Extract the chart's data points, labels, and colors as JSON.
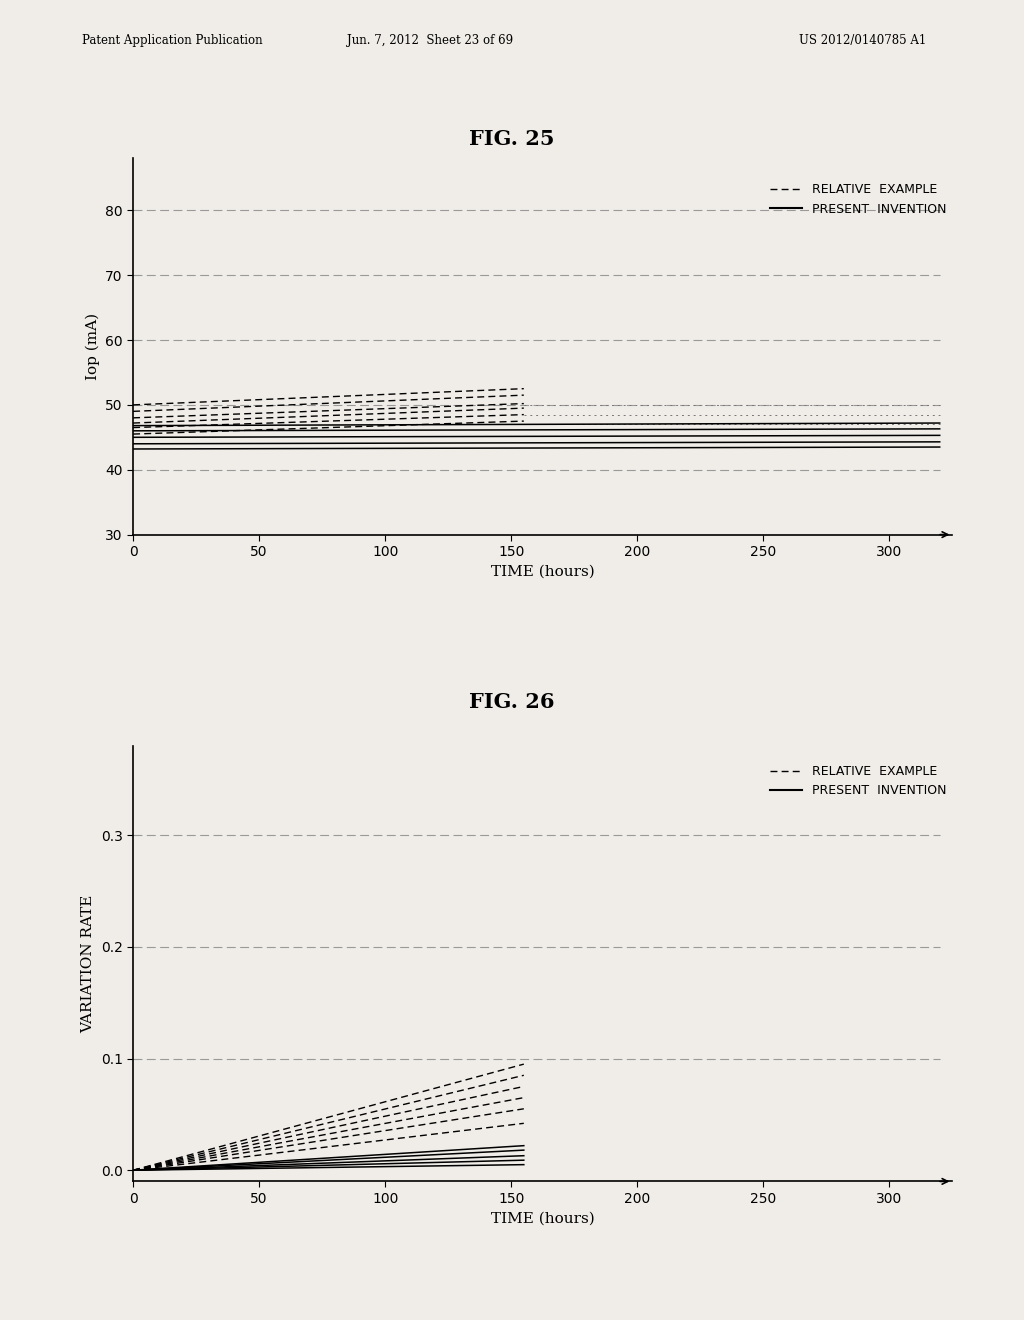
{
  "fig25_title": "FIG. 25",
  "fig26_title": "FIG. 26",
  "header_left": "Patent Application Publication",
  "header_mid": "Jun. 7, 2012  Sheet 23 of 69",
  "header_right": "US 2012/0140785 A1",
  "fig25": {
    "xlabel": "TIME (hours)",
    "ylabel": "Iop (mA)",
    "xlim": [
      0,
      325
    ],
    "ylim": [
      30,
      88
    ],
    "xticks": [
      0,
      50,
      100,
      150,
      200,
      250,
      300
    ],
    "yticks": [
      30,
      40,
      50,
      60,
      70,
      80
    ],
    "horizontal_lines": [
      40,
      50,
      60,
      70,
      80
    ],
    "relative_example_lines": [
      {
        "y0": 50.0,
        "y1": 52.5
      },
      {
        "y0": 49.0,
        "y1": 51.5
      },
      {
        "y0": 48.0,
        "y1": 50.2
      },
      {
        "y0": 47.2,
        "y1": 49.5
      },
      {
        "y0": 46.5,
        "y1": 48.5
      },
      {
        "y0": 45.5,
        "y1": 47.5
      }
    ],
    "present_invention_lines": [
      {
        "y0": 46.8,
        "y1": 47.2
      },
      {
        "y0": 46.0,
        "y1": 46.3
      },
      {
        "y0": 45.0,
        "y1": 45.3
      },
      {
        "y0": 44.0,
        "y1": 44.3
      },
      {
        "y0": 43.2,
        "y1": 43.5
      }
    ],
    "re_flat_after": [
      {
        "y": 50.0
      },
      {
        "y": 48.5
      },
      {
        "y": 47.0
      }
    ],
    "pi_flat_after": [
      {
        "y": 47.0
      },
      {
        "y": 46.0
      },
      {
        "y": 45.0
      },
      {
        "y": 44.0
      },
      {
        "y": 43.0
      }
    ],
    "x_cutoff": 155
  },
  "fig26": {
    "xlabel": "TIME (hours)",
    "ylabel": "VARIATION RATE",
    "xlim": [
      0,
      325
    ],
    "ylim": [
      -0.01,
      0.38
    ],
    "xticks": [
      0,
      50,
      100,
      150,
      200,
      250,
      300
    ],
    "yticks": [
      0,
      0.1,
      0.2,
      0.3
    ],
    "horizontal_lines": [
      0.1,
      0.2,
      0.3
    ],
    "relative_example_lines": [
      {
        "y0": 0.0,
        "y1": 0.095
      },
      {
        "y0": 0.0,
        "y1": 0.085
      },
      {
        "y0": 0.0,
        "y1": 0.075
      },
      {
        "y0": 0.0,
        "y1": 0.065
      },
      {
        "y0": 0.0,
        "y1": 0.055
      },
      {
        "y0": 0.0,
        "y1": 0.042
      }
    ],
    "present_invention_lines": [
      {
        "y0": 0.0,
        "y1": 0.022
      },
      {
        "y0": 0.0,
        "y1": 0.018
      },
      {
        "y0": 0.0,
        "y1": 0.013
      },
      {
        "y0": 0.0,
        "y1": 0.009
      },
      {
        "y0": 0.0,
        "y1": 0.005
      }
    ],
    "x_cutoff": 155
  },
  "background_color": "#f0ede8",
  "plot_bg_color": "#f0ede8",
  "line_color": "#000000",
  "grid_color": "#999999",
  "legend_dashed_label": "RELATIVE  EXAMPLE",
  "legend_solid_label": "PRESENT  INVENTION"
}
